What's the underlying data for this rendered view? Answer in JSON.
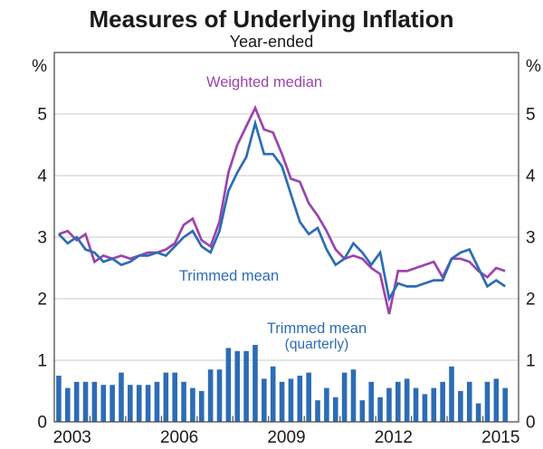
{
  "title": "Measures of Underlying Inflation",
  "subtitle": "Year-ended",
  "annotations": {
    "weighted_median": "Weighted median",
    "trimmed_mean": "Trimmed mean",
    "trimmed_mean_quarterly_line1": "Trimmed mean",
    "trimmed_mean_quarterly_line2": "(quarterly)"
  },
  "colors": {
    "blue": "#2d6cb5",
    "purple": "#9c44ac",
    "grid": "#c9c9c9",
    "axis": "#4d4d4d",
    "text": "#1a1a1a"
  },
  "axis": {
    "y_unit": "%",
    "y_ticks": [
      0,
      1,
      2,
      3,
      4,
      5
    ],
    "y_max": 6,
    "x_range_start": 2003,
    "x_range_end": 2016,
    "x_labels": [
      "2003",
      "2006",
      "2009",
      "2012",
      "2015"
    ]
  },
  "chart_data": {
    "type": "bar+line",
    "frequency": "quarterly",
    "start_quarter": "2003Q1",
    "end_quarter": "2015Q3",
    "x_axis_range": [
      2003,
      2016
    ],
    "y_axis_range": [
      0,
      6
    ],
    "grid": true,
    "series": [
      {
        "name": "Weighted median",
        "kind": "line",
        "color_key": "purple",
        "values": [
          3.05,
          3.1,
          2.95,
          3.05,
          2.6,
          2.7,
          2.65,
          2.7,
          2.65,
          2.7,
          2.75,
          2.75,
          2.8,
          2.9,
          3.2,
          3.3,
          2.95,
          2.85,
          3.25,
          4.05,
          4.5,
          4.8,
          5.1,
          4.75,
          4.7,
          4.35,
          3.95,
          3.9,
          3.55,
          3.35,
          3.1,
          2.8,
          2.65,
          2.7,
          2.65,
          2.5,
          2.4,
          1.75,
          2.45,
          2.45,
          2.5,
          2.55,
          2.6,
          2.35,
          2.65,
          2.65,
          2.6,
          2.45,
          2.35,
          2.5,
          2.45
        ]
      },
      {
        "name": "Trimmed mean",
        "kind": "line",
        "color_key": "blue",
        "values": [
          3.05,
          2.9,
          3.0,
          2.8,
          2.75,
          2.6,
          2.65,
          2.55,
          2.6,
          2.7,
          2.7,
          2.75,
          2.7,
          2.85,
          3.0,
          3.1,
          2.85,
          2.75,
          3.1,
          3.75,
          4.05,
          4.3,
          4.85,
          4.35,
          4.35,
          4.15,
          3.7,
          3.25,
          3.05,
          3.15,
          2.8,
          2.55,
          2.65,
          2.9,
          2.75,
          2.55,
          2.75,
          2.0,
          2.25,
          2.2,
          2.2,
          2.25,
          2.3,
          2.3,
          2.65,
          2.75,
          2.8,
          2.5,
          2.2,
          2.3,
          2.2
        ]
      },
      {
        "name": "Trimmed mean (quarterly)",
        "kind": "bar",
        "color_key": "blue",
        "values": [
          0.75,
          0.55,
          0.65,
          0.65,
          0.65,
          0.6,
          0.6,
          0.8,
          0.6,
          0.6,
          0.6,
          0.65,
          0.8,
          0.8,
          0.65,
          0.55,
          0.5,
          0.85,
          0.85,
          1.2,
          1.15,
          1.15,
          1.25,
          0.7,
          0.9,
          0.65,
          0.7,
          0.75,
          0.8,
          0.35,
          0.55,
          0.4,
          0.8,
          0.85,
          0.35,
          0.65,
          0.4,
          0.55,
          0.65,
          0.7,
          0.55,
          0.45,
          0.55,
          0.65,
          0.9,
          0.5,
          0.65,
          0.3,
          0.65,
          0.7,
          0.55
        ]
      }
    ]
  }
}
